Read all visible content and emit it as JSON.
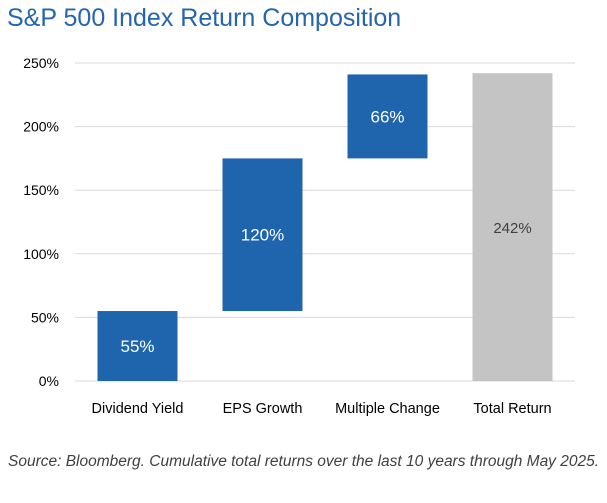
{
  "title": "S&P 500 Index Return Composition",
  "source_note": "Source: Bloomberg. Cumulative total returns over the last 10 years through May 2025.",
  "colors": {
    "title": "#2565ad",
    "bar": "#1f65ae",
    "total": "#c4c4c4",
    "grid": "#d9d9d9",
    "axis_text": "#000000",
    "bar_label": "#ffffff",
    "total_label": "#404040"
  },
  "chart_data": {
    "type": "bar",
    "subtype": "waterfall",
    "title": "S&P 500 Index Return Composition",
    "categories": [
      "Dividend Yield",
      "EPS Growth",
      "Multiple Change",
      "Total Return"
    ],
    "values": [
      55,
      120,
      66,
      242
    ],
    "base": [
      0,
      55,
      175,
      0
    ],
    "labels": [
      "55%",
      "120%",
      "66%",
      "242%"
    ],
    "is_total": [
      false,
      false,
      false,
      true
    ],
    "xlabel": "",
    "ylabel": "",
    "ylim": [
      0,
      250
    ],
    "yticks": [
      0,
      50,
      100,
      150,
      200,
      250
    ],
    "ytick_labels": [
      "0%",
      "50%",
      "100%",
      "150%",
      "200%",
      "250%"
    ],
    "grid": true,
    "legend": "none"
  }
}
